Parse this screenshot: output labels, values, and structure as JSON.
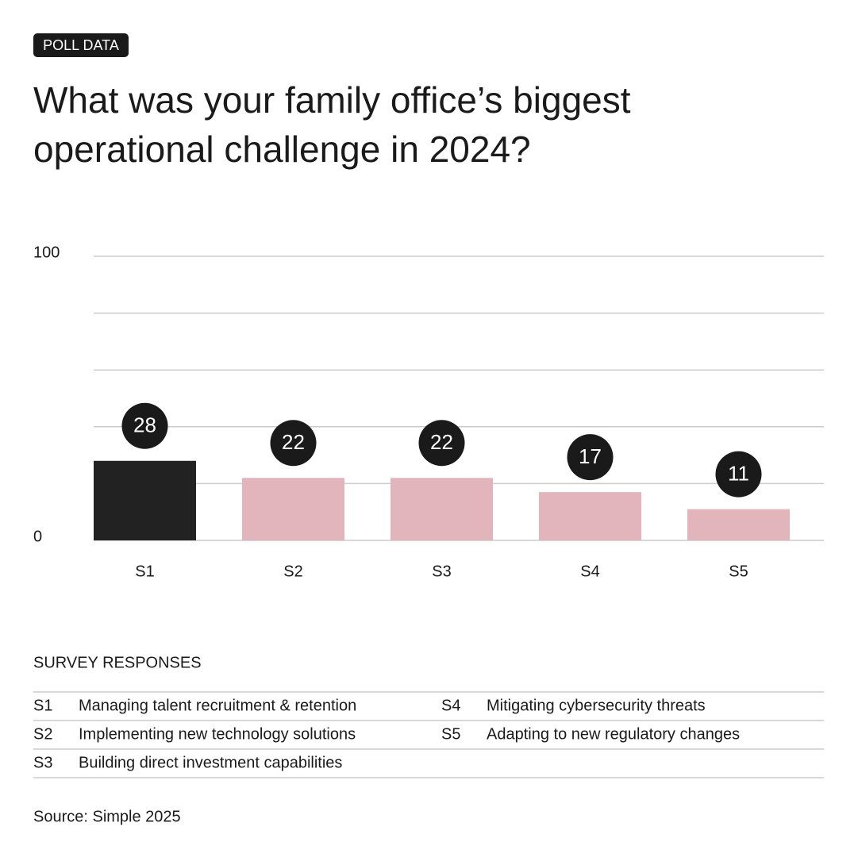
{
  "badge": "POLL DATA",
  "chart_data": {
    "type": "bar",
    "title": [
      "What was your family office’s biggest",
      "operational challenge in 2024?"
    ],
    "categories": [
      "S1",
      "S2",
      "S3",
      "S4",
      "S5"
    ],
    "values": [
      28,
      22,
      22,
      17,
      11
    ],
    "colors": [
      "#222222",
      "#e2b4bc",
      "#e2b4bc",
      "#e2b4bc",
      "#e2b4bc"
    ],
    "ylim": [
      0,
      100
    ],
    "yticks": [
      0,
      100
    ],
    "ygrid": [
      0,
      20,
      40,
      60,
      80,
      100
    ],
    "grid": true
  },
  "legend": {
    "title": "SURVEY RESPONSES",
    "rows": [
      {
        "code": "S1",
        "label": "Managing talent recruitment & retention"
      },
      {
        "code": "S2",
        "label": "Implementing new technology solutions"
      },
      {
        "code": "S3",
        "label": "Building direct investment capabilities"
      },
      {
        "code": "S4",
        "label": "Mitigating cybersecurity threats"
      },
      {
        "code": "S5",
        "label": "Adapting to new regulatory changes"
      }
    ]
  },
  "source": "Source: Simple 2025"
}
